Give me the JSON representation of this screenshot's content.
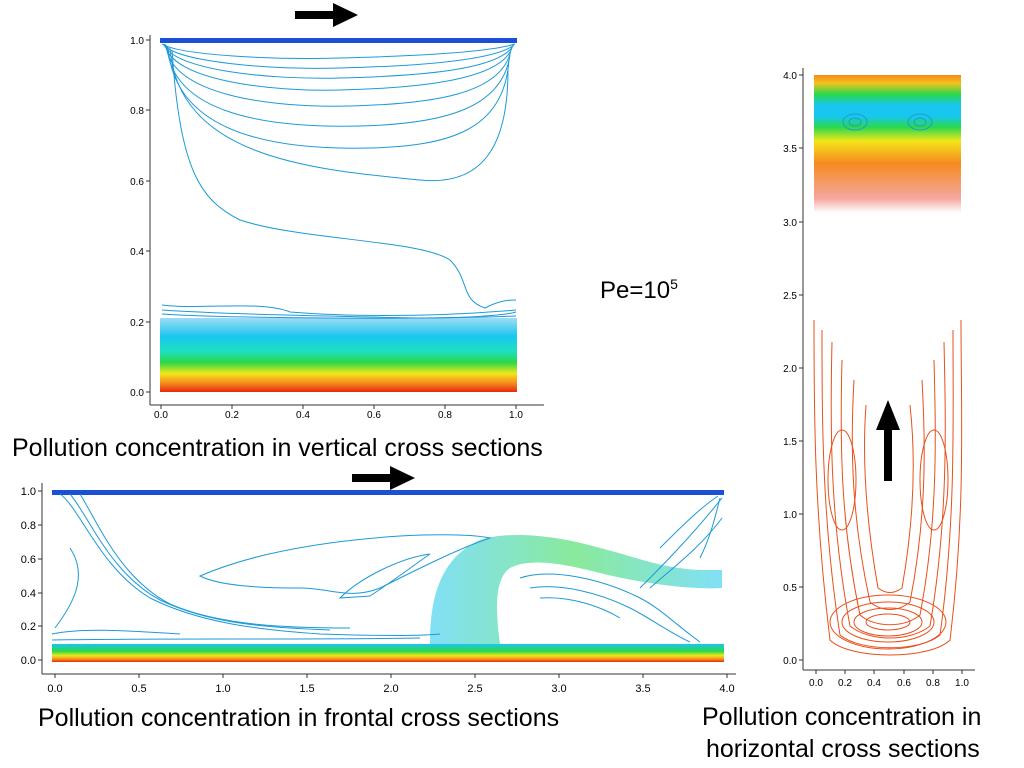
{
  "figure": {
    "vertical": {
      "caption": "Pollution concentration in vertical cross sections",
      "x_ticks": [
        "0.0",
        "0.2",
        "0.4",
        "0.6",
        "0.8",
        "1.0"
      ],
      "y_ticks": [
        "0.0",
        "0.2",
        "0.4",
        "0.6",
        "0.8",
        "1.0"
      ],
      "flow_direction": "right"
    },
    "frontal": {
      "caption": "Pollution concentration in frontal cross sections",
      "x_ticks": [
        "0.0",
        "0.5",
        "1.0",
        "1.5",
        "2.0",
        "2.5",
        "3.0",
        "3.5",
        "4.0"
      ],
      "y_ticks": [
        "0.0",
        "0.2",
        "0.4",
        "0.6",
        "0.8",
        "1.0"
      ],
      "flow_direction": "right"
    },
    "horizontal": {
      "caption_line1": "Pollution concentration in",
      "caption_line2": "horizontal cross sections",
      "x_ticks": [
        "0.0",
        "0.2",
        "0.4",
        "0.6",
        "0.8",
        "1.0"
      ],
      "y_ticks": [
        "0.0",
        "0.5",
        "1.0",
        "1.5",
        "2.0",
        "2.5",
        "3.0",
        "3.5",
        "4.0"
      ],
      "flow_direction": "up"
    },
    "peclet": {
      "base": "Pe=10",
      "exponent": "5"
    },
    "colors": {
      "low": "#1a4fd6",
      "cyan": "#17c7f0",
      "green": "#22d84a",
      "yellow": "#f2e71a",
      "orange": "#f68a1e",
      "high": "#e8280e",
      "contour_line": "#1e9ad6",
      "horizontal_contour": "#e8501c"
    }
  }
}
